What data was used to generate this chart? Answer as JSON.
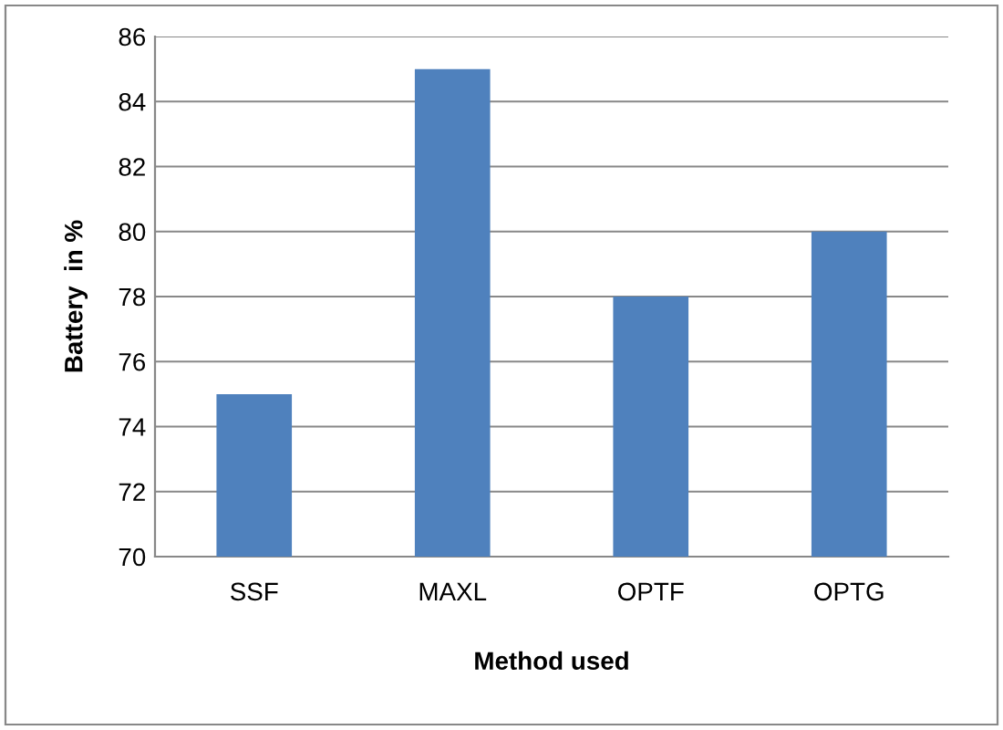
{
  "chart_data": {
    "type": "bar",
    "xlabel": "Method used",
    "ylabel": "Battery  in %",
    "categories": [
      "SSF",
      "MAXL",
      "OPTF",
      "OPTG"
    ],
    "values": [
      75,
      85,
      78,
      80
    ],
    "color": "#4f81bd",
    "ylim": [
      70,
      86
    ],
    "yticks": [
      70,
      72,
      74,
      76,
      78,
      80,
      82,
      84,
      86
    ],
    "grid": "y"
  }
}
